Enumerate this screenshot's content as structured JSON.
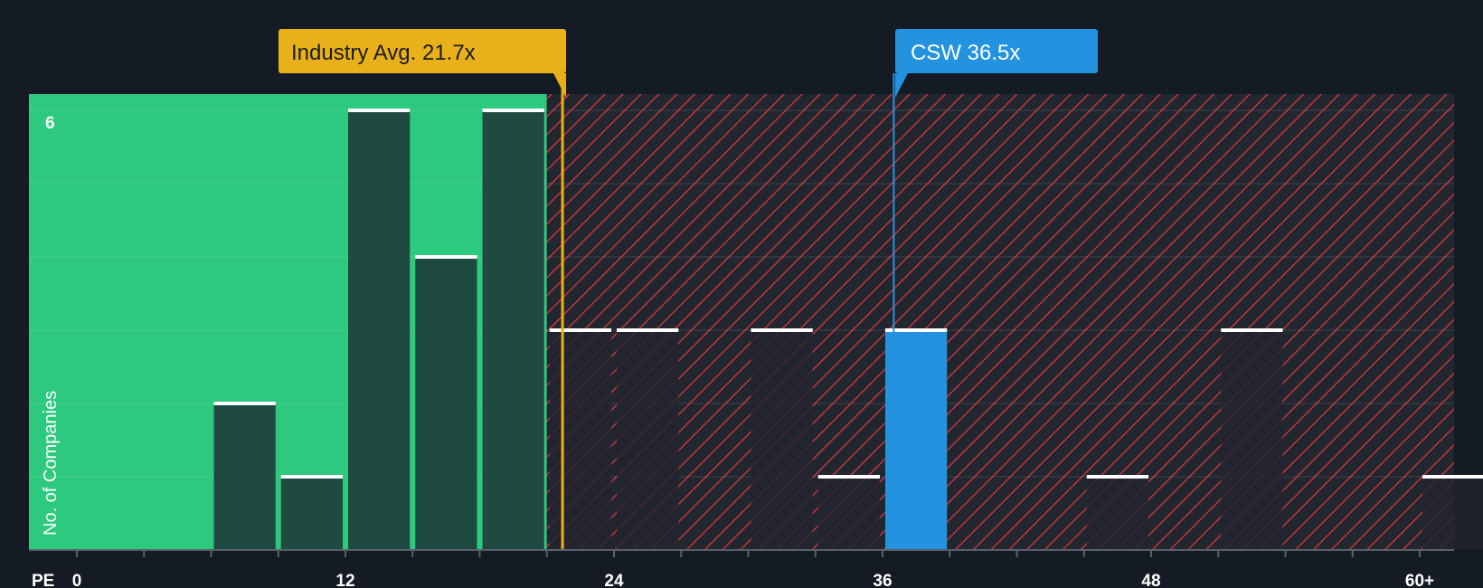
{
  "chart_data": {
    "type": "bar",
    "title": "",
    "xlabel": "PE",
    "ylabel": "No. of Companies",
    "xlim": [
      0,
      60
    ],
    "ylim": [
      0,
      6
    ],
    "x_ticks": [
      "0",
      "12",
      "24",
      "36",
      "48",
      "60+"
    ],
    "y_ticks": [
      "6"
    ],
    "bin_width": 3,
    "bins": [
      {
        "start": 0,
        "count": 0
      },
      {
        "start": 3,
        "count": 0
      },
      {
        "start": 6,
        "count": 2
      },
      {
        "start": 9,
        "count": 1
      },
      {
        "start": 12,
        "count": 6
      },
      {
        "start": 15,
        "count": 4
      },
      {
        "start": 18,
        "count": 6
      },
      {
        "start": 21,
        "count": 3
      },
      {
        "start": 24,
        "count": 3
      },
      {
        "start": 27,
        "count": 0
      },
      {
        "start": 30,
        "count": 3
      },
      {
        "start": 33,
        "count": 1
      },
      {
        "start": 36,
        "count": 3,
        "highlight": true
      },
      {
        "start": 39,
        "count": 0
      },
      {
        "start": 42,
        "count": 0
      },
      {
        "start": 45,
        "count": 1
      },
      {
        "start": 48,
        "count": 0
      },
      {
        "start": 51,
        "count": 3
      },
      {
        "start": 54,
        "count": 0
      },
      {
        "start": 57,
        "count": 0
      },
      {
        "start": 60,
        "count": 1
      }
    ],
    "fair_region_end": 21,
    "industry_avg": {
      "value": 21.7,
      "label": "Industry Avg. 21.7x"
    },
    "company": {
      "value": 36.5,
      "label": "CSW 36.5x"
    },
    "colors": {
      "background": "#151b24",
      "fair_zone": "#2dc97e",
      "bar_in_fair": "#1f4a42",
      "bar_outside": "#222430",
      "hatch_bg": "#22262f",
      "hatch_line": "#c0363c",
      "industry": "#e8b01a",
      "company": "#2393e0",
      "cap": "#ffffff"
    }
  }
}
